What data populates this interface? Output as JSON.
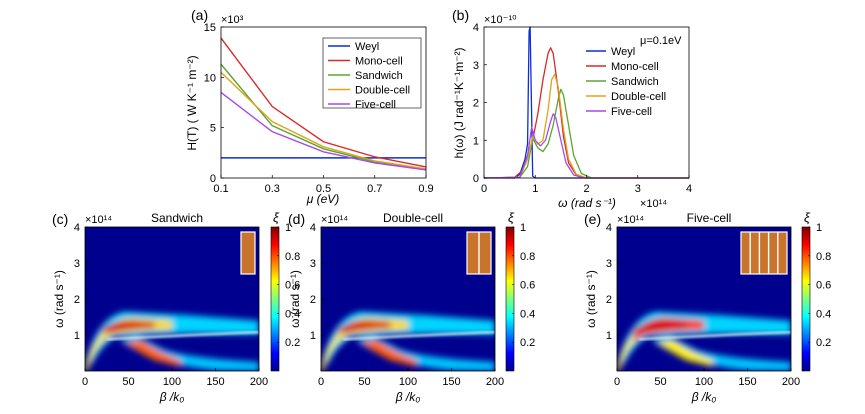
{
  "chart_data": [
    {
      "panel": "(a)",
      "type": "line",
      "xlabel": "μ (eV)",
      "ylabel": "H(T) ( W K⁻¹ m⁻²)",
      "y_multiplier": "×10³",
      "xlim": [
        0.1,
        0.9
      ],
      "ylim": [
        0,
        15
      ],
      "xticks": [
        "0.1",
        "0.3",
        "0.5",
        "0.7",
        "0.9"
      ],
      "yticks": [
        "0",
        "5",
        "10",
        "15"
      ],
      "legend_position": "top-right",
      "x": [
        0.1,
        0.3,
        0.5,
        0.7,
        0.9
      ],
      "series": [
        {
          "name": "Weyl",
          "color": "#0a2fd6",
          "values": [
            2.0,
            2.0,
            2.0,
            2.0,
            2.0
          ]
        },
        {
          "name": "Mono-cell",
          "color": "#d62a2a",
          "values": [
            13.9,
            7.1,
            3.6,
            2.1,
            1.1
          ]
        },
        {
          "name": "Sandwich",
          "color": "#5aa62e",
          "values": [
            11.3,
            5.2,
            2.9,
            1.6,
            0.9
          ]
        },
        {
          "name": "Double-cell",
          "color": "#e0a21d",
          "values": [
            10.5,
            5.6,
            3.1,
            1.7,
            0.9
          ]
        },
        {
          "name": "Five-cell",
          "color": "#a54ce8",
          "values": [
            8.5,
            4.6,
            2.6,
            1.5,
            0.8
          ]
        }
      ]
    },
    {
      "panel": "(b)",
      "type": "line",
      "annotation": "μ=0.1eV",
      "xlabel": "ω (rad s⁻¹)",
      "x_multiplier": "×10¹⁴",
      "ylabel": "h(ω) (J rad⁻¹K⁻¹m⁻²)",
      "y_multiplier": "×10⁻¹⁰",
      "xlim": [
        0,
        4
      ],
      "ylim": [
        0,
        4
      ],
      "xticks": [
        "0",
        "1",
        "2",
        "3",
        "4"
      ],
      "yticks": [
        "0",
        "1",
        "2",
        "3",
        "4"
      ],
      "legend_position": "top-right",
      "series": [
        {
          "name": "Weyl",
          "color": "#0a2fd6",
          "x": [
            0,
            0.6,
            0.7,
            0.8,
            0.85,
            0.88,
            0.9,
            0.95,
            1.0,
            4.0
          ],
          "values": [
            0,
            0,
            0.1,
            0.5,
            0.9,
            3.9,
            4.0,
            0.05,
            0,
            0
          ]
        },
        {
          "name": "Mono-cell",
          "color": "#d62a2a",
          "x": [
            0,
            0.6,
            0.75,
            0.85,
            0.95,
            1.05,
            1.15,
            1.25,
            1.3,
            1.35,
            1.45,
            1.55,
            1.65,
            1.8,
            2.0,
            4.0
          ],
          "values": [
            0,
            0.02,
            0.2,
            0.6,
            1.0,
            1.7,
            2.6,
            3.3,
            3.45,
            3.3,
            2.3,
            1.1,
            0.4,
            0.08,
            0,
            0
          ]
        },
        {
          "name": "Sandwich",
          "color": "#5aa62e",
          "x": [
            0,
            0.7,
            0.85,
            0.95,
            1.05,
            1.15,
            1.25,
            1.35,
            1.45,
            1.5,
            1.55,
            1.65,
            1.75,
            1.9,
            2.1,
            4.0
          ],
          "values": [
            0,
            0.02,
            0.3,
            1.05,
            0.8,
            0.7,
            0.9,
            1.4,
            2.1,
            2.35,
            2.2,
            1.4,
            0.6,
            0.12,
            0,
            0
          ]
        },
        {
          "name": "Double-cell",
          "color": "#e0a21d",
          "x": [
            0,
            0.7,
            0.85,
            0.95,
            1.05,
            1.15,
            1.25,
            1.32,
            1.38,
            1.45,
            1.55,
            1.65,
            1.8,
            2.0,
            4.0
          ],
          "values": [
            0,
            0.02,
            0.5,
            1.1,
            0.9,
            1.0,
            1.8,
            2.6,
            2.75,
            2.4,
            1.3,
            0.5,
            0.1,
            0,
            0
          ]
        },
        {
          "name": "Five-cell",
          "color": "#a54ce8",
          "x": [
            0,
            0.7,
            0.85,
            0.93,
            1.0,
            1.1,
            1.2,
            1.3,
            1.35,
            1.4,
            1.5,
            1.6,
            1.75,
            1.95,
            4.0
          ],
          "values": [
            0,
            0.02,
            0.6,
            1.35,
            1.0,
            0.85,
            1.0,
            1.5,
            1.7,
            1.6,
            1.0,
            0.4,
            0.08,
            0,
            0
          ]
        }
      ]
    },
    {
      "panel": "(c)",
      "type": "heatmap",
      "title": "Sandwich",
      "xlabel": "β /k₀",
      "ylabel": "ω (rad s⁻¹)",
      "y_multiplier": "×10¹⁴",
      "xlim": [
        0,
        200
      ],
      "ylim": [
        0,
        4
      ],
      "xticks": [
        "0",
        "50",
        "100",
        "150",
        "200"
      ],
      "yticks": [
        "1",
        "2",
        "3",
        "4"
      ],
      "colorbar_label": "ξ",
      "colorbar_ticks": [
        "0.2",
        "0.4",
        "0.6",
        "0.8",
        "1"
      ],
      "colorbar_range": [
        0,
        1
      ],
      "inset_cells": 1
    },
    {
      "panel": "(d)",
      "type": "heatmap",
      "title": "Double-cell",
      "xlabel": "β /k₀",
      "ylabel": "ω (rad s⁻¹)",
      "y_multiplier": "×10¹⁴",
      "xlim": [
        0,
        200
      ],
      "ylim": [
        0,
        4
      ],
      "xticks": [
        "0",
        "50",
        "100",
        "150",
        "200"
      ],
      "yticks": [
        "1",
        "2",
        "3",
        "4"
      ],
      "colorbar_label": "ξ",
      "colorbar_ticks": [
        "0.2",
        "0.4",
        "0.6",
        "0.8",
        "1"
      ],
      "colorbar_range": [
        0,
        1
      ],
      "inset_cells": 2
    },
    {
      "panel": "(e)",
      "type": "heatmap",
      "title": "Five-cell",
      "xlabel": "β /k₀",
      "ylabel": "ω (rad s⁻¹)",
      "y_multiplier": "×10¹⁴",
      "xlim": [
        0,
        200
      ],
      "ylim": [
        0,
        4
      ],
      "xticks": [
        "0",
        "50",
        "100",
        "150",
        "200"
      ],
      "yticks": [
        "1",
        "2",
        "3",
        "4"
      ],
      "colorbar_label": "ξ",
      "colorbar_ticks": [
        "0.2",
        "0.4",
        "0.6",
        "0.8",
        "1"
      ],
      "colorbar_range": [
        0,
        1
      ],
      "inset_cells": 5
    }
  ]
}
